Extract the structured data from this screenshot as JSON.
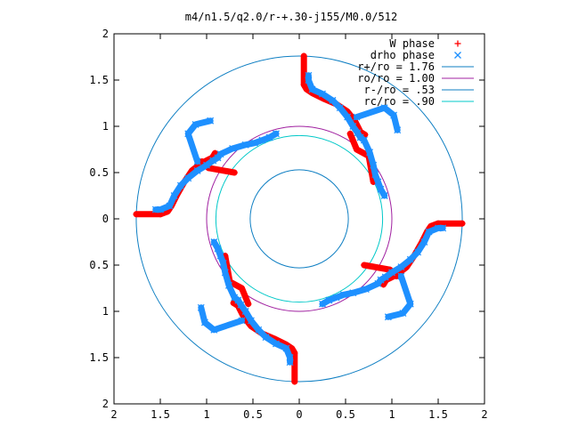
{
  "chart_data": {
    "type": "scatter",
    "title": "m4/n1.5/q2.0/r-+.30-j155/M0.0/512",
    "xlabel": "",
    "ylabel": "",
    "xlim": [
      -2,
      2
    ],
    "ylim": [
      -2,
      2
    ],
    "x_tick_labels": [
      "2",
      "1.5",
      "1",
      "0.5",
      "0",
      "0.5",
      "1",
      "1.5",
      "2"
    ],
    "y_tick_labels": [
      "2",
      "1.5",
      "1",
      "0.5",
      "0",
      "0.5",
      "1",
      "1.5",
      "2"
    ],
    "grid": false,
    "legend_position": "top-right",
    "series": [
      {
        "name": "W phase",
        "marker": "+",
        "color": "#ff0000",
        "arms": [
          {
            "x": [
              0.05,
              0.05,
              0.08,
              0.14,
              0.26,
              0.4,
              0.52,
              0.6,
              0.64,
              0.66,
              0.69,
              0.71
            ],
            "y": [
              1.76,
              1.45,
              1.4,
              1.36,
              1.3,
              1.24,
              1.16,
              1.06,
              0.98,
              0.94,
              0.92,
              0.91
            ]
          },
          {
            "x": [
              -1.76,
              -1.5,
              -1.42,
              -1.38,
              -1.32,
              -1.24,
              -1.16,
              -1.06,
              -0.98,
              -0.94,
              -0.92,
              -0.91
            ],
            "y": [
              0.05,
              0.05,
              0.08,
              0.14,
              0.26,
              0.4,
              0.52,
              0.6,
              0.64,
              0.66,
              0.69,
              0.71
            ]
          },
          {
            "x": [
              -0.05,
              -0.05,
              -0.08,
              -0.14,
              -0.26,
              -0.4,
              -0.52,
              -0.6,
              -0.64,
              -0.66,
              -0.69,
              -0.71
            ],
            "y": [
              -1.76,
              -1.45,
              -1.4,
              -1.36,
              -1.3,
              -1.24,
              -1.16,
              -1.06,
              -0.98,
              -0.94,
              -0.92,
              -0.91
            ]
          },
          {
            "x": [
              1.76,
              1.5,
              1.42,
              1.38,
              1.32,
              1.24,
              1.16,
              1.06,
              0.98,
              0.94,
              0.92,
              0.91
            ],
            "y": [
              -0.05,
              -0.05,
              -0.08,
              -0.14,
              -0.26,
              -0.4,
              -0.52,
              -0.6,
              -0.64,
              -0.66,
              -0.69,
              -0.71
            ]
          },
          {
            "x": [
              0.55,
              0.62,
              0.75,
              0.8
            ],
            "y": [
              0.92,
              0.75,
              0.68,
              0.4
            ]
          },
          {
            "x": [
              -0.7,
              -0.98,
              -1.05
            ],
            "y": [
              0.5,
              0.55,
              0.62
            ]
          },
          {
            "x": [
              -0.55,
              -0.62,
              -0.75,
              -0.8
            ],
            "y": [
              -0.92,
              -0.75,
              -0.68,
              -0.4
            ]
          },
          {
            "x": [
              0.7,
              0.98,
              1.05
            ],
            "y": [
              -0.5,
              -0.55,
              -0.62
            ]
          }
        ]
      },
      {
        "name": "drho phase",
        "marker": "x",
        "color": "#1e90ff",
        "arms": [
          {
            "x": [
              0.1,
              0.1,
              0.14,
              0.25,
              0.36,
              0.44,
              0.52,
              0.58,
              0.63,
              0.66,
              0.7,
              0.76,
              0.8,
              0.82,
              0.85,
              0.88,
              0.92
            ],
            "y": [
              1.55,
              1.5,
              1.4,
              1.35,
              1.28,
              1.2,
              1.1,
              1.0,
              0.93,
              0.88,
              0.85,
              0.72,
              0.58,
              0.48,
              0.4,
              0.32,
              0.25
            ]
          },
          {
            "x": [
              -1.55,
              -1.5,
              -1.4,
              -1.35,
              -1.28,
              -1.2,
              -1.1,
              -1.0,
              -0.93,
              -0.88,
              -0.85,
              -0.72,
              -0.58,
              -0.48,
              -0.4,
              -0.32,
              -0.25
            ],
            "y": [
              0.1,
              0.1,
              0.14,
              0.25,
              0.36,
              0.44,
              0.52,
              0.58,
              0.63,
              0.66,
              0.7,
              0.76,
              0.8,
              0.82,
              0.85,
              0.88,
              0.92
            ]
          },
          {
            "x": [
              -0.1,
              -0.1,
              -0.14,
              -0.25,
              -0.36,
              -0.44,
              -0.52,
              -0.58,
              -0.63,
              -0.66,
              -0.7,
              -0.76,
              -0.8,
              -0.82,
              -0.85,
              -0.88,
              -0.92
            ],
            "y": [
              -1.55,
              -1.5,
              -1.4,
              -1.35,
              -1.28,
              -1.2,
              -1.1,
              -1.0,
              -0.93,
              -0.88,
              -0.85,
              -0.72,
              -0.58,
              -0.48,
              -0.4,
              -0.32,
              -0.25
            ]
          },
          {
            "x": [
              1.55,
              1.5,
              1.4,
              1.35,
              1.28,
              1.2,
              1.1,
              1.0,
              0.93,
              0.88,
              0.85,
              0.72,
              0.58,
              0.48,
              0.4,
              0.32,
              0.25
            ],
            "y": [
              -0.1,
              -0.1,
              -0.14,
              -0.25,
              -0.36,
              -0.44,
              -0.52,
              -0.58,
              -0.63,
              -0.66,
              -0.7,
              -0.76,
              -0.8,
              -0.82,
              -0.85,
              -0.88,
              -0.92
            ]
          },
          {
            "x": [
              1.06,
              1.02,
              0.92,
              0.62
            ],
            "y": [
              0.96,
              1.12,
              1.2,
              1.1
            ]
          },
          {
            "x": [
              -1.1,
              -1.2,
              -1.12,
              -0.96
            ],
            "y": [
              0.62,
              0.92,
              1.02,
              1.06
            ]
          },
          {
            "x": [
              -1.06,
              -1.02,
              -0.92,
              -0.62
            ],
            "y": [
              -0.96,
              -1.12,
              -1.2,
              -1.1
            ]
          },
          {
            "x": [
              1.1,
              1.2,
              1.12,
              0.96
            ],
            "y": [
              -0.62,
              -0.92,
              -1.02,
              -1.06
            ]
          }
        ]
      }
    ],
    "circles": [
      {
        "name": "r+/ro = 1.76",
        "r": 1.76,
        "color": "#0f7fc3"
      },
      {
        "name": "ro/ro = 1.00",
        "r": 1.0,
        "color": "#a020a0"
      },
      {
        "name": "r-/ro = .53",
        "r": 0.53,
        "color": "#0f7fc3"
      },
      {
        "name": "rc/ro = .90",
        "r": 0.9,
        "color": "#00c8c8"
      }
    ]
  }
}
